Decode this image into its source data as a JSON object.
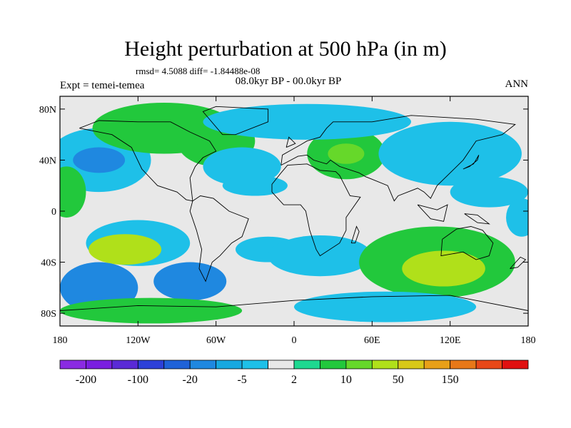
{
  "chart_data": {
    "type": "heatmap",
    "title": "Height perturbation at 500 hPa (in m)",
    "stats_line": "rmsd= 4.5088 diff= -1.84488e-08",
    "experiment_label": "Expt = temei-temea",
    "period_label": "08.0kyr BP - 00.0kyr BP",
    "season_label": "ANN",
    "x_ticks": [
      "180",
      "120W",
      "60W",
      "0",
      "60E",
      "120E",
      "180"
    ],
    "y_ticks": [
      "80N",
      "40N",
      "0",
      "40S",
      "80S"
    ],
    "xlim": [
      -180,
      180
    ],
    "ylim": [
      -90,
      90
    ],
    "colorbar": {
      "colors": [
        "#8a2be2",
        "#7a1fe0",
        "#5a2ad6",
        "#2d40d8",
        "#1f62d8",
        "#1f88e0",
        "#17a8e0",
        "#1ec0e8",
        "#e8e8e8",
        "#1ed890",
        "#22c83c",
        "#66d82a",
        "#b0e01a",
        "#d8c818",
        "#e8a018",
        "#e87818",
        "#e84818",
        "#e01010"
      ],
      "tick_labels": [
        "-200",
        "-100",
        "-20",
        "-5",
        "2",
        "10",
        "50",
        "150"
      ]
    },
    "blobs": [
      {
        "lon": -120,
        "lat": -25,
        "rx": 40,
        "ry": 18,
        "level": -1
      },
      {
        "lon": -130,
        "lat": -30,
        "rx": 28,
        "ry": 12,
        "level": 3
      },
      {
        "lon": -150,
        "lat": -60,
        "rx": 30,
        "ry": 20,
        "level": -2
      },
      {
        "lon": -80,
        "lat": -55,
        "rx": 28,
        "ry": 15,
        "level": -2
      },
      {
        "lon": -110,
        "lat": -78,
        "rx": 70,
        "ry": 10,
        "level": 1
      },
      {
        "lon": -20,
        "lat": -30,
        "rx": 25,
        "ry": 10,
        "level": -1
      },
      {
        "lon": 20,
        "lat": -35,
        "rx": 40,
        "ry": 16,
        "level": -1
      },
      {
        "lon": 110,
        "lat": -40,
        "rx": 60,
        "ry": 28,
        "level": 1
      },
      {
        "lon": 115,
        "lat": -45,
        "rx": 32,
        "ry": 14,
        "level": 3
      },
      {
        "lon": 70,
        "lat": -75,
        "rx": 70,
        "ry": 12,
        "level": -1
      },
      {
        "lon": -150,
        "lat": 40,
        "rx": 40,
        "ry": 25,
        "level": -1
      },
      {
        "lon": -150,
        "lat": 40,
        "rx": 20,
        "ry": 10,
        "level": -2
      },
      {
        "lon": -100,
        "lat": 65,
        "rx": 55,
        "ry": 20,
        "level": 1
      },
      {
        "lon": -60,
        "lat": 55,
        "rx": 30,
        "ry": 20,
        "level": 1
      },
      {
        "lon": -40,
        "lat": 35,
        "rx": 30,
        "ry": 15,
        "level": -1
      },
      {
        "lon": 40,
        "lat": 45,
        "rx": 30,
        "ry": 20,
        "level": 1
      },
      {
        "lon": 40,
        "lat": 45,
        "rx": 14,
        "ry": 8,
        "level": 2
      },
      {
        "lon": 10,
        "lat": 70,
        "rx": 80,
        "ry": 14,
        "level": -1
      },
      {
        "lon": 120,
        "lat": 45,
        "rx": 55,
        "ry": 25,
        "level": -1
      },
      {
        "lon": 150,
        "lat": 15,
        "rx": 30,
        "ry": 12,
        "level": -1
      },
      {
        "lon": -30,
        "lat": 20,
        "rx": 25,
        "ry": 8,
        "level": -1
      },
      {
        "lon": -175,
        "lat": 15,
        "rx": 15,
        "ry": 20,
        "level": 1
      },
      {
        "lon": 175,
        "lat": -5,
        "rx": 12,
        "ry": 15,
        "level": -1
      }
    ]
  }
}
